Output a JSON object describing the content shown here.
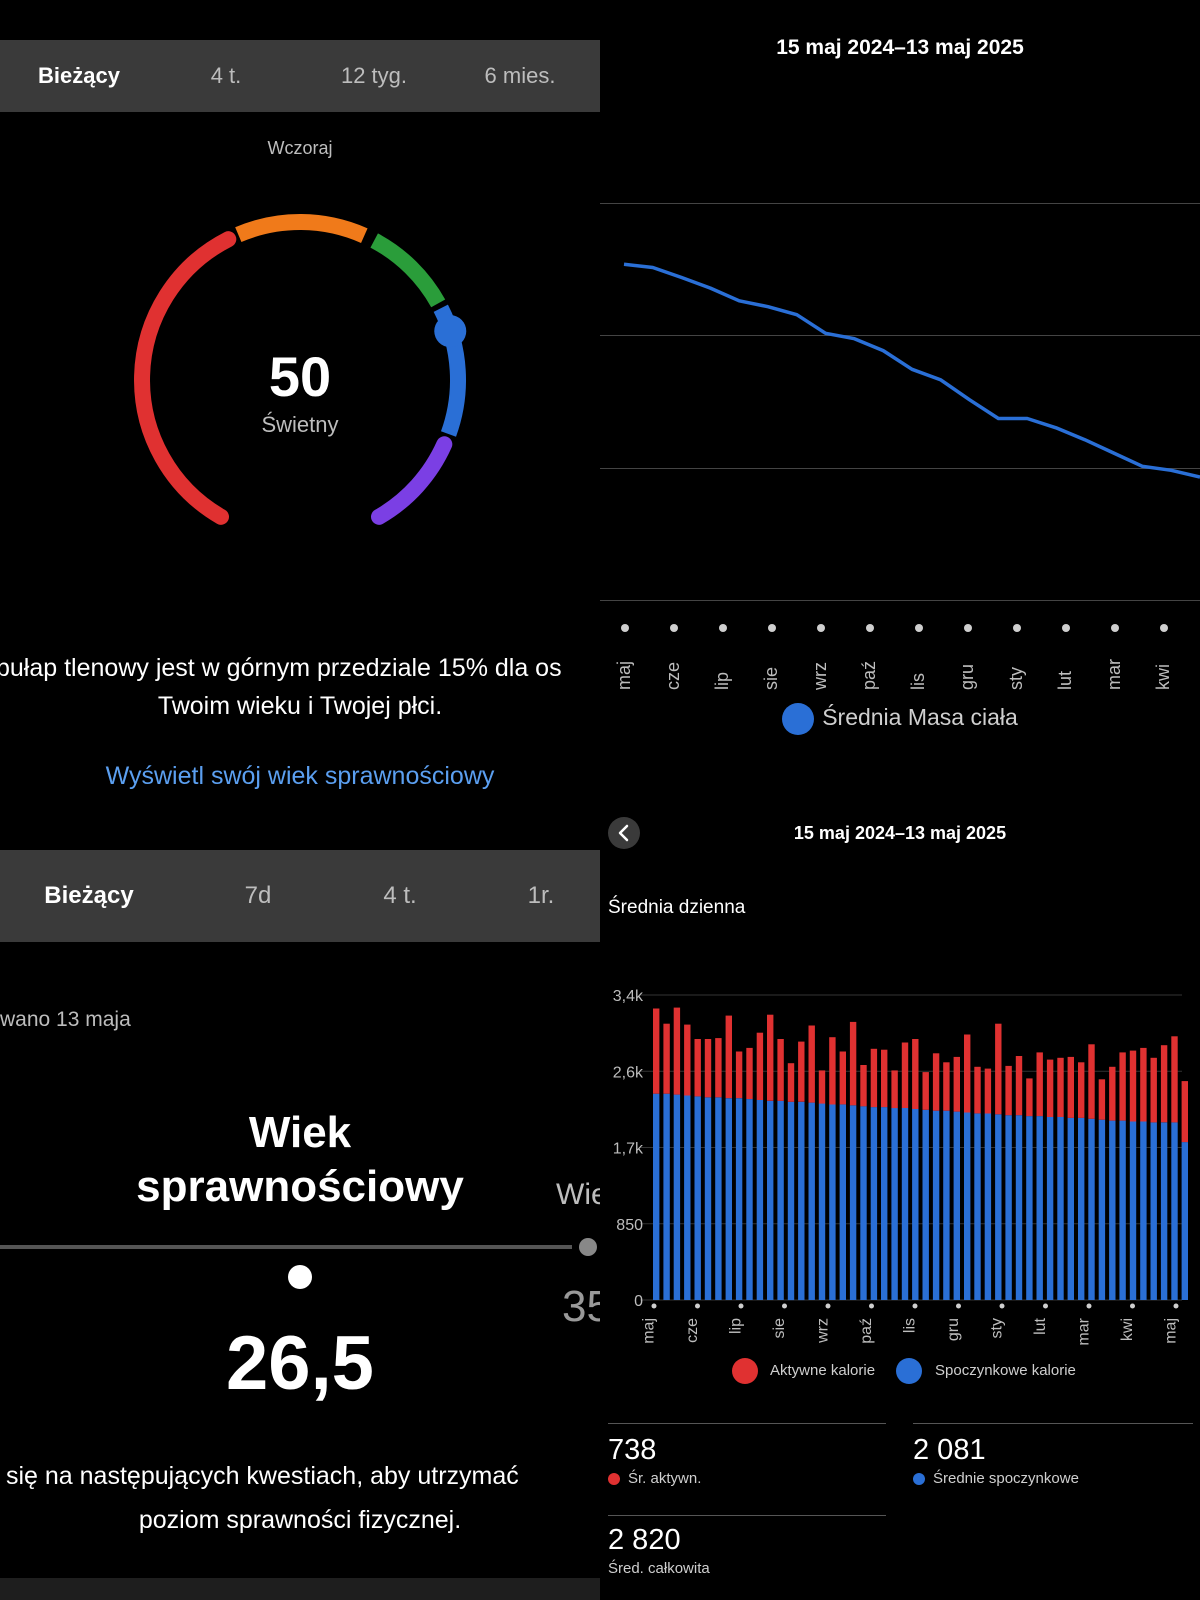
{
  "vo2_panel": {
    "tabs": [
      "Bieżący",
      "4 t.",
      "12 tyg.",
      "6 mies."
    ],
    "active_tab": 0,
    "date_label": "Wczoraj",
    "value": "50",
    "rating": "Świetny",
    "description_line1": "pułap tlenowy jest w górnym przedziale 15% dla os",
    "description_line2": "Twoim wieku i Twojej płci.",
    "link": "Wyświetl swój wiek sprawnościowy",
    "gauge_colors": [
      "#e03131",
      "#f07a1a",
      "#2a9d3a",
      "#2a6fd6",
      "#7b3fe4"
    ]
  },
  "fitness_age_panel": {
    "tabs": [
      "Bieżący",
      "7d",
      "4 t.",
      "1r."
    ],
    "active_tab": 0,
    "updated_label": "wano 13 maja",
    "title_line1": "Wiek",
    "title_line2": "sprawnościowy",
    "value": "26,5",
    "side_label": "Wie",
    "side_value": "35",
    "description_line1": "się na następujących kwestiach, aby utrzymać",
    "description_line2": "poziom sprawności fizycznej."
  },
  "weight_panel": {
    "title": "15 maj 2024–13 maj 2025",
    "legend": "Średnia Masa ciała",
    "line_color": "#2a6fd6",
    "chart_data": {
      "type": "line",
      "x_labels": [
        "maj",
        "cze",
        "lip",
        "sie",
        "wrz",
        "paź",
        "lis",
        "gru",
        "sty",
        "lut",
        "mar",
        "kwi"
      ],
      "series": [
        {
          "name": "Średnia Masa ciała",
          "values": [
            0.54,
            0.515,
            0.44,
            0.36,
            0.265,
            0.22,
            0.16,
            0.02,
            -0.02,
            -0.11,
            -0.25,
            -0.33,
            -0.48,
            -0.62,
            -0.62,
            -0.69,
            -0.78,
            -0.88,
            -0.98,
            -1.01,
            -1.06
          ]
        }
      ],
      "legend_position": "bottom",
      "grid": true
    }
  },
  "calories_panel": {
    "title": "15 maj 2024–13 maj 2025",
    "subtitle": "Średnia dzienna",
    "legend_active": "Aktywne kalorie",
    "legend_resting": "Spoczynkowe kalorie",
    "active_color": "#e03131",
    "resting_color": "#2a6fd6",
    "stats": [
      {
        "value": "738",
        "label": "Śr. aktywn.",
        "color": "#e03131"
      },
      {
        "value": "2 081",
        "label": "Średnie spoczynkowe",
        "color": "#2a6fd6"
      },
      {
        "value": "2 820",
        "label": "Śred. całkowita",
        "color": ""
      }
    ],
    "chart_data": {
      "type": "bar",
      "stacked": true,
      "y_tick_labels": [
        "0",
        "850",
        "1,7k",
        "2,6k",
        "3,4k"
      ],
      "y_ticks": [
        0,
        850,
        1700,
        2550,
        3400
      ],
      "ylim": [
        0,
        3400
      ],
      "x_labels": [
        "maj",
        "cze",
        "lip",
        "sie",
        "wrz",
        "paź",
        "lis",
        "gru",
        "sty",
        "lut",
        "mar",
        "kwi",
        "maj"
      ],
      "series": [
        {
          "name": "Spoczynkowe kalorie",
          "values": [
            2300,
            2300,
            2290,
            2280,
            2270,
            2260,
            2260,
            2250,
            2250,
            2240,
            2230,
            2220,
            2220,
            2210,
            2210,
            2200,
            2190,
            2180,
            2180,
            2170,
            2160,
            2150,
            2150,
            2140,
            2140,
            2130,
            2120,
            2110,
            2110,
            2100,
            2090,
            2080,
            2080,
            2070,
            2060,
            2060,
            2050,
            2050,
            2040,
            2040,
            2030,
            2030,
            2020,
            2010,
            2000,
            2000,
            1990,
            1990,
            1980,
            1980,
            1980,
            1760
          ]
        },
        {
          "name": "Aktywne kalorie",
          "values": [
            950,
            780,
            970,
            790,
            640,
            650,
            660,
            920,
            520,
            570,
            750,
            960,
            690,
            430,
            670,
            860,
            370,
            750,
            590,
            930,
            460,
            650,
            640,
            420,
            730,
            780,
            420,
            640,
            540,
            610,
            870,
            520,
            500,
            1010,
            550,
            660,
            420,
            710,
            640,
            660,
            680,
            620,
            830,
            450,
            600,
            760,
            790,
            820,
            720,
            860,
            960,
            680
          ]
        }
      ]
    }
  }
}
